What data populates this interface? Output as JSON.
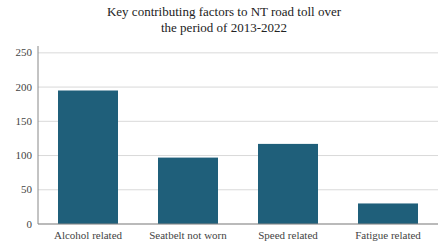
{
  "chart_data": {
    "type": "bar",
    "title": "Key contributing factors to NT road toll over\nthe period of 2013-2022",
    "categories": [
      "Alcohol related",
      "Seatbelt not worn",
      "Speed related",
      "Fatigue related"
    ],
    "values": [
      195,
      97,
      117,
      30
    ],
    "color": "#1F5F7A",
    "ylim": [
      0,
      260
    ],
    "yticks": [
      0,
      50,
      100,
      150,
      200,
      250
    ],
    "grid": true
  }
}
